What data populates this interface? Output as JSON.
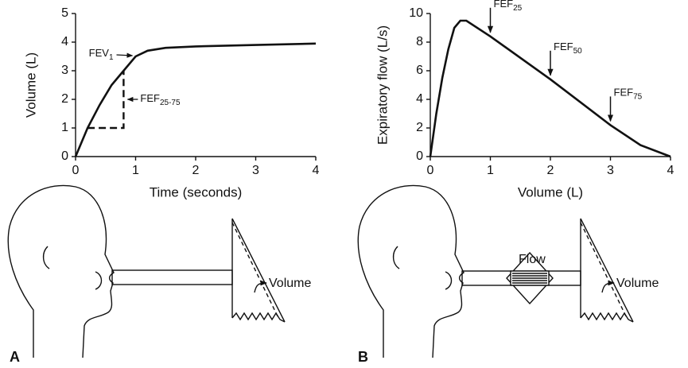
{
  "chart_data": [
    {
      "type": "line",
      "panel": "A",
      "x_label": "Time (seconds)",
      "y_label": "Volume (L)",
      "xlim": [
        0,
        4
      ],
      "xticks": [
        0,
        1,
        2,
        3,
        4
      ],
      "ylim": [
        0,
        5
      ],
      "yticks": [
        0,
        1,
        2,
        3,
        4,
        5
      ],
      "color": "#111111",
      "x": [
        0,
        0.2,
        0.4,
        0.6,
        0.8,
        1,
        1.2,
        1.5,
        2,
        3,
        4
      ],
      "values": [
        0,
        1,
        1.8,
        2.5,
        3,
        3.5,
        3.7,
        3.8,
        3.85,
        3.9,
        3.95
      ],
      "annotations": [
        {
          "text": "FEV",
          "subscript": "1"
        },
        {
          "text": "FEF",
          "subscript": "25-75"
        }
      ]
    },
    {
      "type": "line",
      "panel": "B",
      "x_label": "Volume (L)",
      "y_label": "Expiratory flow (L/s)",
      "xlim": [
        0,
        4
      ],
      "xticks": [
        0,
        1,
        2,
        3,
        4
      ],
      "ylim": [
        0,
        10
      ],
      "yticks": [
        0,
        2,
        4,
        6,
        8,
        10
      ],
      "color": "#111111",
      "x": [
        0,
        0.1,
        0.2,
        0.3,
        0.4,
        0.5,
        0.6,
        1,
        2,
        3,
        3.5,
        4
      ],
      "values": [
        0,
        3,
        5.5,
        7.5,
        9,
        9.5,
        9.5,
        8.4,
        5.4,
        2.2,
        0.8,
        0
      ],
      "annotations": [
        {
          "text": "FEF",
          "subscript": "25"
        },
        {
          "text": "FEF",
          "subscript": "50"
        },
        {
          "text": "FEF",
          "subscript": "75"
        }
      ]
    }
  ],
  "diagrams": [
    {
      "labels": [
        "Volume"
      ]
    },
    {
      "labels": [
        "Flow",
        "Volume"
      ]
    }
  ]
}
